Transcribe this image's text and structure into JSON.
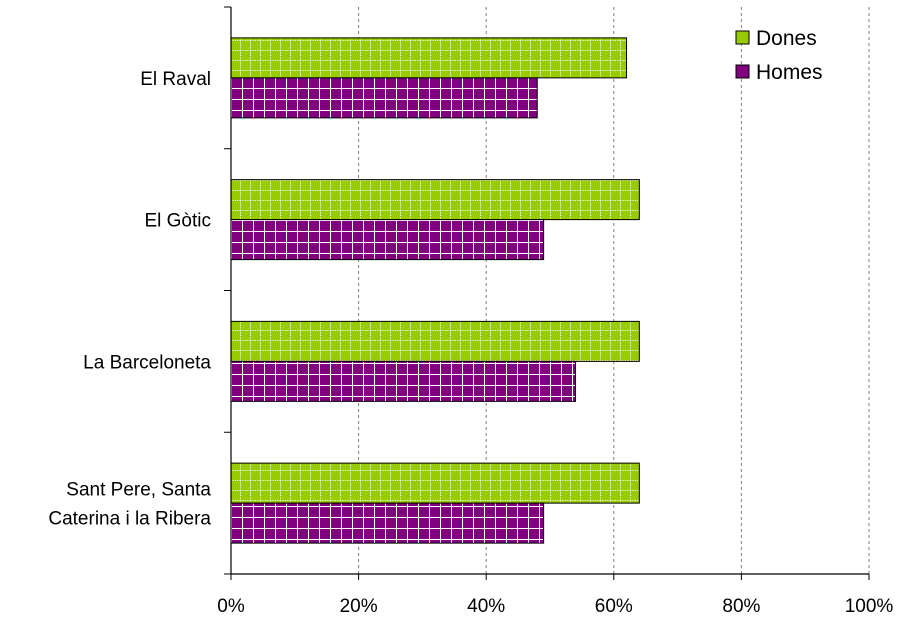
{
  "chart_data": {
    "type": "bar",
    "orientation": "horizontal",
    "categories": [
      [
        "El Raval"
      ],
      [
        "El Gòtic"
      ],
      [
        "La Barceloneta"
      ],
      [
        "Sant Pere, Santa",
        "Caterina i la Ribera"
      ]
    ],
    "series": [
      {
        "name": "Dones",
        "values": [
          62,
          64,
          64,
          64
        ],
        "color": "#99cc00"
      },
      {
        "name": "Homes",
        "values": [
          48,
          49,
          54,
          49
        ],
        "color": "#800080"
      }
    ],
    "x_ticks": [
      "0%",
      "20%",
      "40%",
      "60%",
      "80%",
      "100%"
    ],
    "xlim": [
      0,
      100
    ],
    "grid": "vertical dashed",
    "legend": "top-right"
  }
}
